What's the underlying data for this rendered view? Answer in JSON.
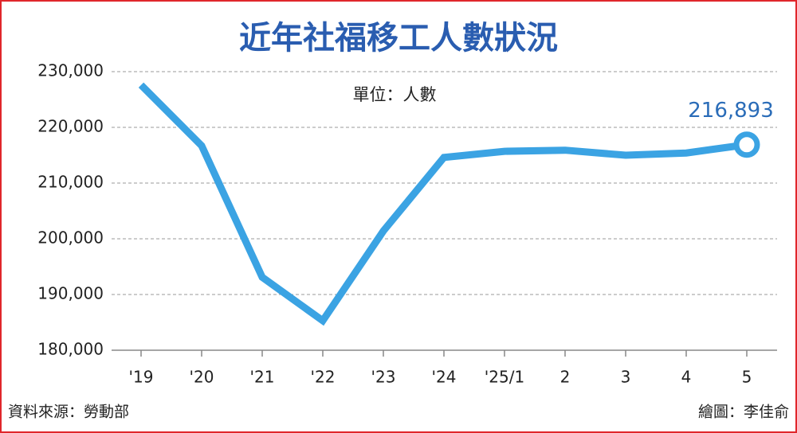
{
  "chart_data": {
    "type": "line",
    "title": "近年社福移工人數狀況",
    "unit": "單位：人數",
    "source": "資料來源：勞動部",
    "credit": "繪圖：李佳俞",
    "categories": [
      "'19",
      "'20",
      "'21",
      "'22",
      "'23",
      "'24",
      "'25/1",
      "2",
      "3",
      "4",
      "5"
    ],
    "values": [
      227600,
      216700,
      193100,
      185300,
      201400,
      214600,
      215700,
      215900,
      215000,
      215400,
      216893
    ],
    "value_labels": [
      null,
      null,
      null,
      null,
      null,
      null,
      null,
      null,
      null,
      null,
      "216,893"
    ],
    "color": "#3ba3e3",
    "ylim": [
      180000,
      230000
    ],
    "yticks": [
      {
        "value": 180000,
        "label": "180,000"
      },
      {
        "value": 190000,
        "label": "190,000"
      },
      {
        "value": 200000,
        "label": "200,000"
      },
      {
        "value": 210000,
        "label": "210,000"
      },
      {
        "value": 220000,
        "label": "220,000"
      },
      {
        "value": 230000,
        "label": "230,000"
      }
    ],
    "grid": true
  }
}
